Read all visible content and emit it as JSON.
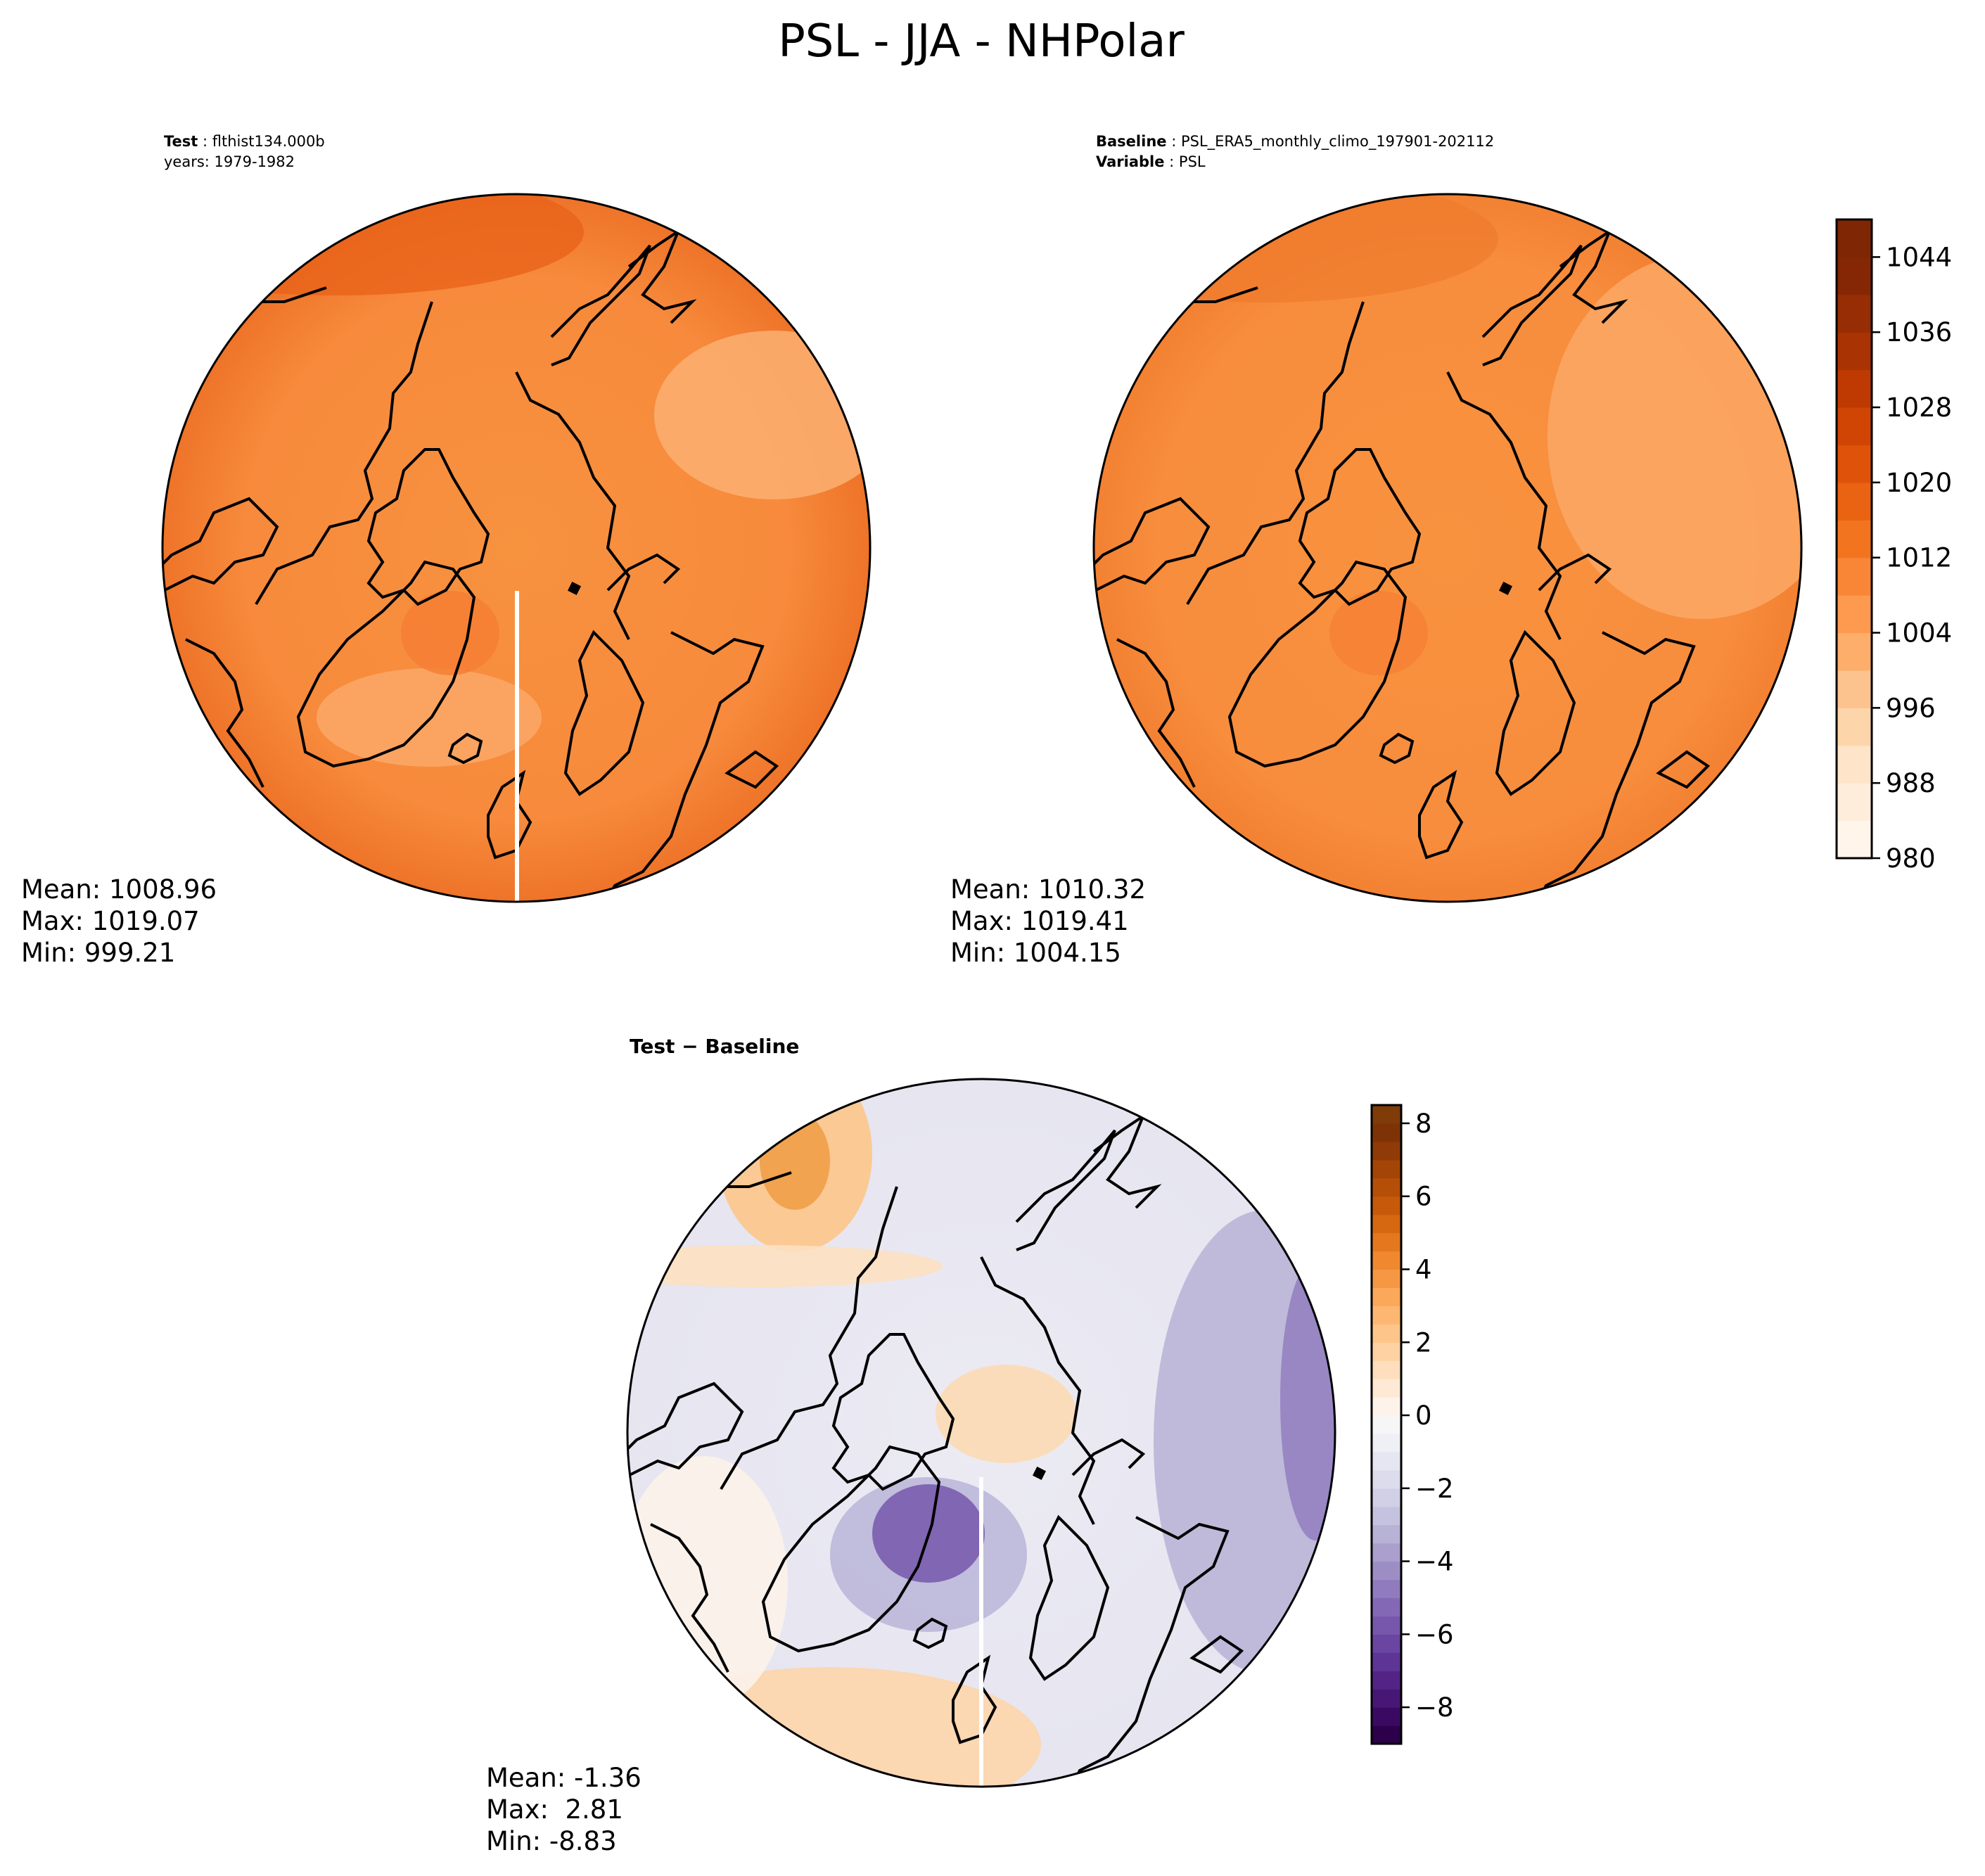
{
  "title": "PSL - JJA - NHPolar",
  "colors": {
    "test_field": "#f68d42",
    "test_field_dark": "#e8631a",
    "test_field_light": "#fba666",
    "baseline_field": "#f7903f",
    "baseline_field_light": "#fca865",
    "coastline": "#000000",
    "seam": "#ffffff"
  },
  "panels": {
    "test": {
      "header": [
        {
          "label": "Test",
          "sep": " : ",
          "value": "flthist134.000b"
        },
        {
          "label": "",
          "sep": "",
          "value": "years: 1979-1982"
        }
      ],
      "stats": [
        "Mean: 1008.96",
        "Max: 1019.07",
        "Min: 999.21"
      ]
    },
    "baseline": {
      "header": [
        {
          "label": "Baseline",
          "sep": " : ",
          "value": "PSL_ERA5_monthly_climo_197901-202112"
        },
        {
          "label": "Variable",
          "sep": " : ",
          "value": "PSL"
        }
      ],
      "stats": [
        "Mean: 1010.32",
        "Max: 1019.41",
        "Min: 1004.15"
      ]
    },
    "diff": {
      "header": [
        {
          "label": "Test − Baseline",
          "sep": "",
          "value": ""
        }
      ],
      "stats": [
        "Mean: -1.36",
        "Max:  2.81",
        "Min: -8.83"
      ]
    }
  },
  "colorbars": {
    "psl": {
      "min": 980,
      "max": 1048,
      "levels": 17,
      "ticks": [
        980,
        988,
        996,
        1004,
        1012,
        1020,
        1028,
        1036,
        1044
      ],
      "tick_labels": [
        "980",
        "988",
        "996",
        "1004",
        "1012",
        "1020",
        "1028",
        "1036",
        "1044"
      ],
      "colors": [
        "#fff5eb",
        "#feeddb",
        "#fee4c9",
        "#fdd5ab",
        "#fdc38f",
        "#fdae6b",
        "#fd9a4f",
        "#f98636",
        "#f3741f",
        "#e96313",
        "#df520a",
        "#d04504",
        "#bf3a02",
        "#aa3303",
        "#972d04",
        "#852705",
        "#7f2704"
      ]
    },
    "diff": {
      "min": -9,
      "max": 8.5,
      "levels": 35,
      "ticks": [
        -8,
        -6,
        -4,
        -2,
        0,
        2,
        4,
        6,
        8
      ],
      "tick_labels": [
        "−8",
        "−6",
        "−4",
        "−2",
        "0",
        "2",
        "4",
        "6",
        "8"
      ],
      "colors": [
        "#2d004b",
        "#3a0a63",
        "#471776",
        "#532486",
        "#5e3496",
        "#6a45a2",
        "#7657ab",
        "#8369b5",
        "#8f7bbd",
        "#9c8ec5",
        "#aa9fcd",
        "#b7b2d6",
        "#c4c2de",
        "#d1d0e6",
        "#dcdced",
        "#e6e6f2",
        "#efeff6",
        "#f7f6f6",
        "#fdf3ea",
        "#fee9d4",
        "#fedebd",
        "#fed2a3",
        "#fdc589",
        "#fdb772",
        "#fba85a",
        "#f69843",
        "#ef882f",
        "#e4781e",
        "#d66812",
        "#c65a0a",
        "#b54f07",
        "#a34506",
        "#903b07",
        "#7e3307",
        "#7f3b08"
      ]
    }
  }
}
